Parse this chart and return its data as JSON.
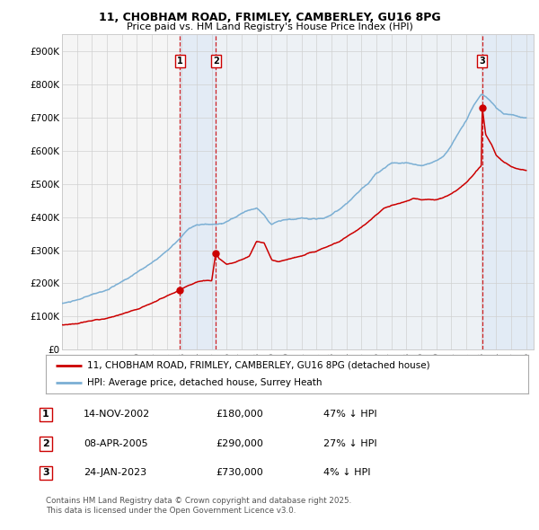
{
  "title1": "11, CHOBHAM ROAD, FRIMLEY, CAMBERLEY, GU16 8PG",
  "title2": "Price paid vs. HM Land Registry's House Price Index (HPI)",
  "xlim_start": 1995.0,
  "xlim_end": 2026.5,
  "ylim_min": 0,
  "ylim_max": 950000,
  "yticks": [
    0,
    100000,
    200000,
    300000,
    400000,
    500000,
    600000,
    700000,
    800000,
    900000
  ],
  "ytick_labels": [
    "£0",
    "£100K",
    "£200K",
    "£300K",
    "£400K",
    "£500K",
    "£600K",
    "£700K",
    "£800K",
    "£900K"
  ],
  "xticks": [
    1995,
    1996,
    1997,
    1998,
    1999,
    2000,
    2001,
    2002,
    2003,
    2004,
    2005,
    2006,
    2007,
    2008,
    2009,
    2010,
    2011,
    2012,
    2013,
    2014,
    2015,
    2016,
    2017,
    2018,
    2019,
    2020,
    2021,
    2022,
    2023,
    2024,
    2025,
    2026
  ],
  "hpi_color": "#7bafd4",
  "price_color": "#cc0000",
  "background_color": "#ffffff",
  "chart_bg_color": "#f8f8f8",
  "grid_color": "#d0d0d0",
  "shade_color": "#dce8f5",
  "legend_label_price": "11, CHOBHAM ROAD, FRIMLEY, CAMBERLEY, GU16 8PG (detached house)",
  "legend_label_hpi": "HPI: Average price, detached house, Surrey Heath",
  "transactions": [
    {
      "num": 1,
      "date": "14-NOV-2002",
      "price": 180000,
      "pct": "47%",
      "x": 2002.87
    },
    {
      "num": 2,
      "date": "08-APR-2005",
      "price": 290000,
      "pct": "27%",
      "x": 2005.28
    },
    {
      "num": 3,
      "date": "24-JAN-2023",
      "price": 730000,
      "pct": "4%",
      "x": 2023.07
    }
  ],
  "shade_regions": [
    {
      "x_start": 2002.87,
      "x_end": 2026.5
    },
    {
      "x_start": 2005.28,
      "x_end": 2026.5
    },
    {
      "x_start": 2023.07,
      "x_end": 2026.5
    }
  ],
  "footnote1": "Contains HM Land Registry data © Crown copyright and database right 2025.",
  "footnote2": "This data is licensed under the Open Government Licence v3.0.",
  "table_rows": [
    {
      "num": 1,
      "date": "14-NOV-2002",
      "price": "£180,000",
      "pct": "47% ↓ HPI"
    },
    {
      "num": 2,
      "date": "08-APR-2005",
      "price": "£290,000",
      "pct": "27% ↓ HPI"
    },
    {
      "num": 3,
      "date": "24-JAN-2023",
      "price": "£730,000",
      "pct": "4% ↓ HPI"
    }
  ]
}
